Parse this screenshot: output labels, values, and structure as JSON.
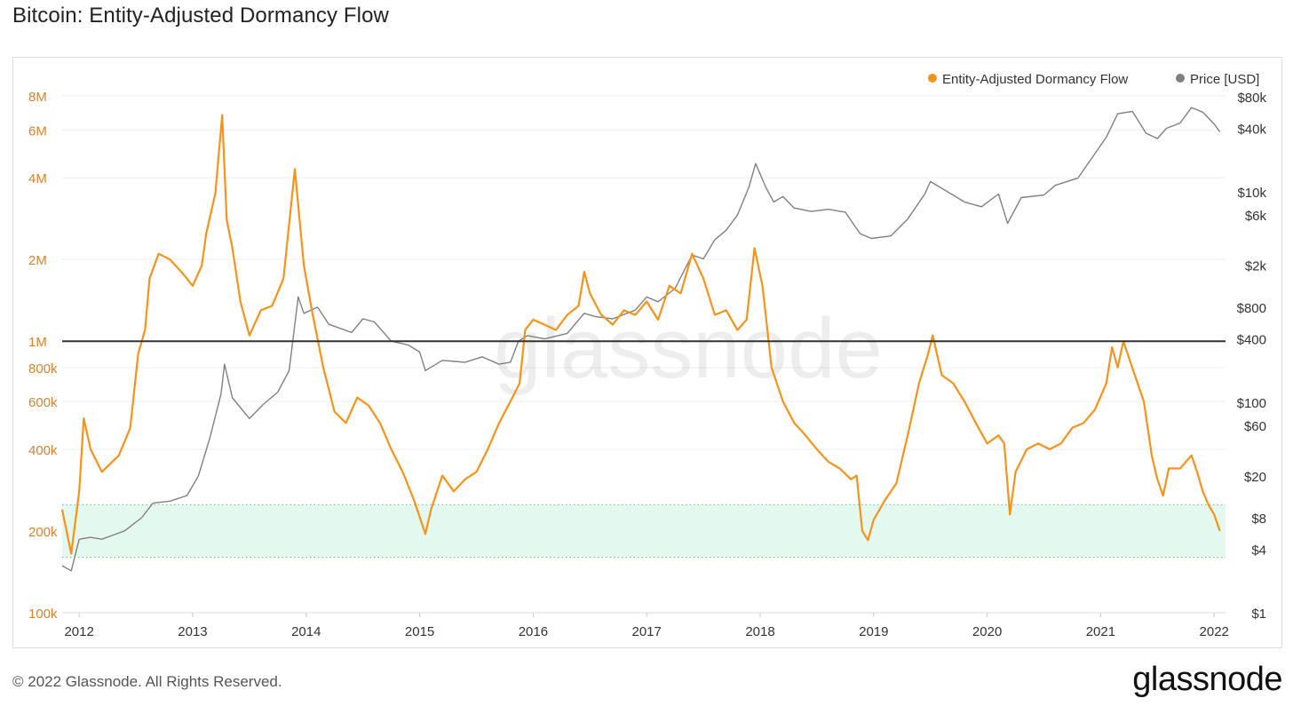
{
  "page": {
    "title": "Bitcoin: Entity-Adjusted Dormancy Flow",
    "footer": "© 2022 Glassnode. All Rights Reserved.",
    "brand": "glassnode",
    "watermark": "glassnode"
  },
  "colors": {
    "flow": "#f7931a",
    "price": "#808080",
    "threshold": "#333333",
    "band_fill": "#e3f8ee",
    "band_line": "#6fbf97",
    "left_axis": "#d9822b",
    "right_axis": "#333333",
    "grid": "#eeeeee"
  },
  "chart_data": {
    "type": "line",
    "title": "Bitcoin: Entity-Adjusted Dormancy Flow",
    "legend_position": "top-right",
    "grid": true,
    "x_axis": {
      "range": [
        2011.85,
        2022.1
      ],
      "ticks": [
        2012,
        2013,
        2014,
        2015,
        2016,
        2017,
        2018,
        2019,
        2020,
        2021,
        2022
      ],
      "tick_labels": [
        "2012",
        "2013",
        "2014",
        "2015",
        "2016",
        "2017",
        "2018",
        "2019",
        "2020",
        "2021",
        "2022"
      ]
    },
    "y_left": {
      "scale": "log",
      "range": [
        100000,
        8500000
      ],
      "ticks": [
        100000,
        200000,
        400000,
        600000,
        800000,
        1000000,
        2000000,
        4000000,
        6000000,
        8000000
      ],
      "tick_labels": [
        "100k",
        "200k",
        "400k",
        "600k",
        "800k",
        "1M",
        "2M",
        "4M",
        "6M",
        "8M"
      ]
    },
    "y_right": {
      "scale": "log",
      "range": [
        1,
        95000
      ],
      "ticks": [
        1,
        4,
        8,
        20,
        60,
        100,
        400,
        800,
        2000,
        6000,
        10000,
        40000,
        80000
      ],
      "tick_labels": [
        "$1",
        "$4",
        "$8",
        "$20",
        "$60",
        "$100",
        "$400",
        "$800",
        "$2k",
        "$6k",
        "$10k",
        "$40k",
        "$80k"
      ]
    },
    "threshold_line": 1000000,
    "green_band": [
      160000,
      250000
    ],
    "series": [
      {
        "name": "Entity-Adjusted Dormancy Flow",
        "axis": "left",
        "color": "#f7931a",
        "points": [
          [
            2011.85,
            240000
          ],
          [
            2011.93,
            165000
          ],
          [
            2012.0,
            280000
          ],
          [
            2012.04,
            520000
          ],
          [
            2012.1,
            400000
          ],
          [
            2012.2,
            330000
          ],
          [
            2012.35,
            380000
          ],
          [
            2012.45,
            480000
          ],
          [
            2012.52,
            900000
          ],
          [
            2012.58,
            1100000
          ],
          [
            2012.62,
            1700000
          ],
          [
            2012.7,
            2100000
          ],
          [
            2012.8,
            2000000
          ],
          [
            2012.9,
            1800000
          ],
          [
            2013.0,
            1600000
          ],
          [
            2013.08,
            1900000
          ],
          [
            2013.12,
            2500000
          ],
          [
            2013.2,
            3500000
          ],
          [
            2013.26,
            6800000
          ],
          [
            2013.3,
            2800000
          ],
          [
            2013.35,
            2200000
          ],
          [
            2013.42,
            1400000
          ],
          [
            2013.5,
            1050000
          ],
          [
            2013.6,
            1300000
          ],
          [
            2013.7,
            1350000
          ],
          [
            2013.8,
            1700000
          ],
          [
            2013.9,
            4300000
          ],
          [
            2013.98,
            1900000
          ],
          [
            2014.05,
            1300000
          ],
          [
            2014.15,
            800000
          ],
          [
            2014.25,
            550000
          ],
          [
            2014.35,
            500000
          ],
          [
            2014.45,
            620000
          ],
          [
            2014.55,
            580000
          ],
          [
            2014.65,
            500000
          ],
          [
            2014.75,
            400000
          ],
          [
            2014.85,
            330000
          ],
          [
            2014.95,
            260000
          ],
          [
            2015.05,
            195000
          ],
          [
            2015.1,
            240000
          ],
          [
            2015.2,
            320000
          ],
          [
            2015.3,
            280000
          ],
          [
            2015.4,
            310000
          ],
          [
            2015.5,
            330000
          ],
          [
            2015.6,
            400000
          ],
          [
            2015.7,
            500000
          ],
          [
            2015.8,
            600000
          ],
          [
            2015.88,
            700000
          ],
          [
            2015.93,
            1100000
          ],
          [
            2016.0,
            1200000
          ],
          [
            2016.1,
            1150000
          ],
          [
            2016.2,
            1100000
          ],
          [
            2016.3,
            1250000
          ],
          [
            2016.4,
            1350000
          ],
          [
            2016.45,
            1800000
          ],
          [
            2016.5,
            1500000
          ],
          [
            2016.6,
            1250000
          ],
          [
            2016.7,
            1150000
          ],
          [
            2016.8,
            1300000
          ],
          [
            2016.9,
            1250000
          ],
          [
            2017.0,
            1400000
          ],
          [
            2017.1,
            1200000
          ],
          [
            2017.2,
            1600000
          ],
          [
            2017.3,
            1500000
          ],
          [
            2017.4,
            2100000
          ],
          [
            2017.5,
            1700000
          ],
          [
            2017.6,
            1250000
          ],
          [
            2017.7,
            1300000
          ],
          [
            2017.8,
            1100000
          ],
          [
            2017.88,
            1200000
          ],
          [
            2017.95,
            2200000
          ],
          [
            2018.02,
            1600000
          ],
          [
            2018.1,
            800000
          ],
          [
            2018.2,
            600000
          ],
          [
            2018.3,
            500000
          ],
          [
            2018.4,
            450000
          ],
          [
            2018.5,
            400000
          ],
          [
            2018.6,
            360000
          ],
          [
            2018.7,
            340000
          ],
          [
            2018.8,
            310000
          ],
          [
            2018.85,
            320000
          ],
          [
            2018.9,
            200000
          ],
          [
            2018.95,
            185000
          ],
          [
            2019.0,
            220000
          ],
          [
            2019.1,
            260000
          ],
          [
            2019.2,
            300000
          ],
          [
            2019.3,
            450000
          ],
          [
            2019.4,
            700000
          ],
          [
            2019.48,
            900000
          ],
          [
            2019.52,
            1050000
          ],
          [
            2019.6,
            750000
          ],
          [
            2019.7,
            700000
          ],
          [
            2019.8,
            600000
          ],
          [
            2019.9,
            500000
          ],
          [
            2020.0,
            420000
          ],
          [
            2020.1,
            450000
          ],
          [
            2020.15,
            420000
          ],
          [
            2020.2,
            230000
          ],
          [
            2020.25,
            330000
          ],
          [
            2020.35,
            400000
          ],
          [
            2020.45,
            420000
          ],
          [
            2020.55,
            400000
          ],
          [
            2020.65,
            420000
          ],
          [
            2020.75,
            480000
          ],
          [
            2020.85,
            500000
          ],
          [
            2020.95,
            560000
          ],
          [
            2021.05,
            700000
          ],
          [
            2021.1,
            950000
          ],
          [
            2021.15,
            800000
          ],
          [
            2021.2,
            1000000
          ],
          [
            2021.3,
            750000
          ],
          [
            2021.38,
            600000
          ],
          [
            2021.45,
            380000
          ],
          [
            2021.5,
            310000
          ],
          [
            2021.55,
            270000
          ],
          [
            2021.6,
            340000
          ],
          [
            2021.7,
            340000
          ],
          [
            2021.8,
            380000
          ],
          [
            2021.85,
            330000
          ],
          [
            2021.9,
            280000
          ],
          [
            2021.95,
            250000
          ],
          [
            2022.0,
            230000
          ],
          [
            2022.05,
            200000
          ]
        ]
      },
      {
        "name": "Price [USD]",
        "axis": "right",
        "color": "#808080",
        "points": [
          [
            2011.85,
            2.8
          ],
          [
            2011.93,
            2.5
          ],
          [
            2012.0,
            5.0
          ],
          [
            2012.1,
            5.2
          ],
          [
            2012.2,
            5.0
          ],
          [
            2012.4,
            6.0
          ],
          [
            2012.55,
            8.0
          ],
          [
            2012.65,
            11.0
          ],
          [
            2012.8,
            11.5
          ],
          [
            2012.95,
            13.0
          ],
          [
            2013.05,
            20.0
          ],
          [
            2013.15,
            45.0
          ],
          [
            2013.25,
            120.0
          ],
          [
            2013.28,
            230.0
          ],
          [
            2013.35,
            110.0
          ],
          [
            2013.5,
            70.0
          ],
          [
            2013.62,
            95.0
          ],
          [
            2013.75,
            125.0
          ],
          [
            2013.85,
            200.0
          ],
          [
            2013.93,
            1000.0
          ],
          [
            2013.98,
            700.0
          ],
          [
            2014.1,
            800.0
          ],
          [
            2014.2,
            550.0
          ],
          [
            2014.4,
            460.0
          ],
          [
            2014.5,
            620.0
          ],
          [
            2014.6,
            580.0
          ],
          [
            2014.75,
            380.0
          ],
          [
            2014.9,
            350.0
          ],
          [
            2015.0,
            300.0
          ],
          [
            2015.05,
            200.0
          ],
          [
            2015.2,
            250.0
          ],
          [
            2015.4,
            240.0
          ],
          [
            2015.55,
            270.0
          ],
          [
            2015.7,
            230.0
          ],
          [
            2015.8,
            240.0
          ],
          [
            2015.87,
            380.0
          ],
          [
            2015.95,
            430.0
          ],
          [
            2016.1,
            400.0
          ],
          [
            2016.3,
            450.0
          ],
          [
            2016.45,
            700.0
          ],
          [
            2016.55,
            650.0
          ],
          [
            2016.7,
            620.0
          ],
          [
            2016.9,
            750.0
          ],
          [
            2017.0,
            1000.0
          ],
          [
            2017.1,
            900.0
          ],
          [
            2017.25,
            1200.0
          ],
          [
            2017.4,
            2500.0
          ],
          [
            2017.5,
            2300.0
          ],
          [
            2017.6,
            3500.0
          ],
          [
            2017.7,
            4300.0
          ],
          [
            2017.8,
            6000.0
          ],
          [
            2017.9,
            11000.0
          ],
          [
            2017.96,
            18500.0
          ],
          [
            2018.05,
            11000.0
          ],
          [
            2018.12,
            8000.0
          ],
          [
            2018.2,
            9000.0
          ],
          [
            2018.3,
            7000.0
          ],
          [
            2018.45,
            6500.0
          ],
          [
            2018.6,
            6800.0
          ],
          [
            2018.75,
            6400.0
          ],
          [
            2018.88,
            4000.0
          ],
          [
            2018.98,
            3600.0
          ],
          [
            2019.15,
            3800.0
          ],
          [
            2019.3,
            5500.0
          ],
          [
            2019.45,
            9500.0
          ],
          [
            2019.5,
            12500.0
          ],
          [
            2019.65,
            10000.0
          ],
          [
            2019.8,
            8000.0
          ],
          [
            2019.95,
            7200.0
          ],
          [
            2020.1,
            9500.0
          ],
          [
            2020.18,
            5000.0
          ],
          [
            2020.3,
            8800.0
          ],
          [
            2020.5,
            9300.0
          ],
          [
            2020.6,
            11500.0
          ],
          [
            2020.8,
            13500.0
          ],
          [
            2020.95,
            23000.0
          ],
          [
            2021.05,
            33000.0
          ],
          [
            2021.15,
            55000.0
          ],
          [
            2021.28,
            58000.0
          ],
          [
            2021.4,
            36000.0
          ],
          [
            2021.5,
            32000.0
          ],
          [
            2021.58,
            40000.0
          ],
          [
            2021.7,
            45000.0
          ],
          [
            2021.8,
            63000.0
          ],
          [
            2021.9,
            57000.0
          ],
          [
            2022.0,
            44000.0
          ],
          [
            2022.05,
            37000.0
          ]
        ]
      }
    ]
  }
}
